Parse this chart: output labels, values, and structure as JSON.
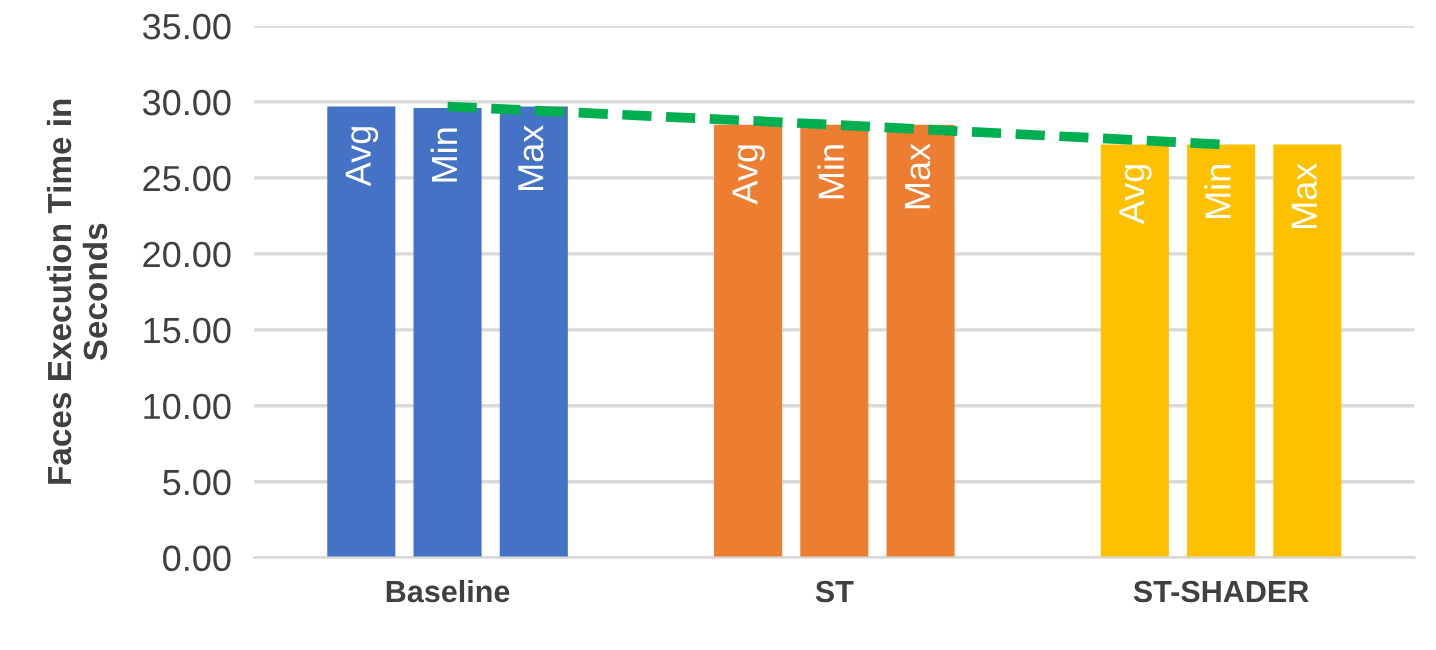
{
  "chart_data": {
    "type": "bar",
    "ylabel": "Faces Execution Time in\nSeconds",
    "categories": [
      "Baseline",
      "ST",
      "ST-SHADER"
    ],
    "series": [
      {
        "name": "Avg",
        "colors": [
          "#4472c4",
          "#ed7d31",
          "#ffc000"
        ],
        "values": [
          29.7,
          28.5,
          27.2
        ]
      },
      {
        "name": "Min",
        "colors": [
          "#4472c4",
          "#ed7d31",
          "#ffc000"
        ],
        "values": [
          29.6,
          28.5,
          27.2
        ]
      },
      {
        "name": "Max",
        "colors": [
          "#4472c4",
          "#ed7d31",
          "#ffc000"
        ],
        "values": [
          29.7,
          28.5,
          27.2
        ]
      },
      {
        "type": "line",
        "color": "#00b050",
        "line_style": "dashed",
        "marker": "none",
        "values": [
          29.7,
          28.5,
          27.2
        ]
      }
    ],
    "ylim": [
      0,
      35
    ],
    "yticks": [
      {
        "value": 0,
        "label": "0.00"
      },
      {
        "value": 5,
        "label": "5.00"
      },
      {
        "value": 10,
        "label": "10.00"
      },
      {
        "value": 15,
        "label": "15.00"
      },
      {
        "value": 20,
        "label": "20.00"
      },
      {
        "value": 25,
        "label": "25.00"
      },
      {
        "value": 30,
        "label": "30.00"
      },
      {
        "value": 35,
        "label": "35.00"
      }
    ],
    "grid": "y",
    "legend": false
  }
}
